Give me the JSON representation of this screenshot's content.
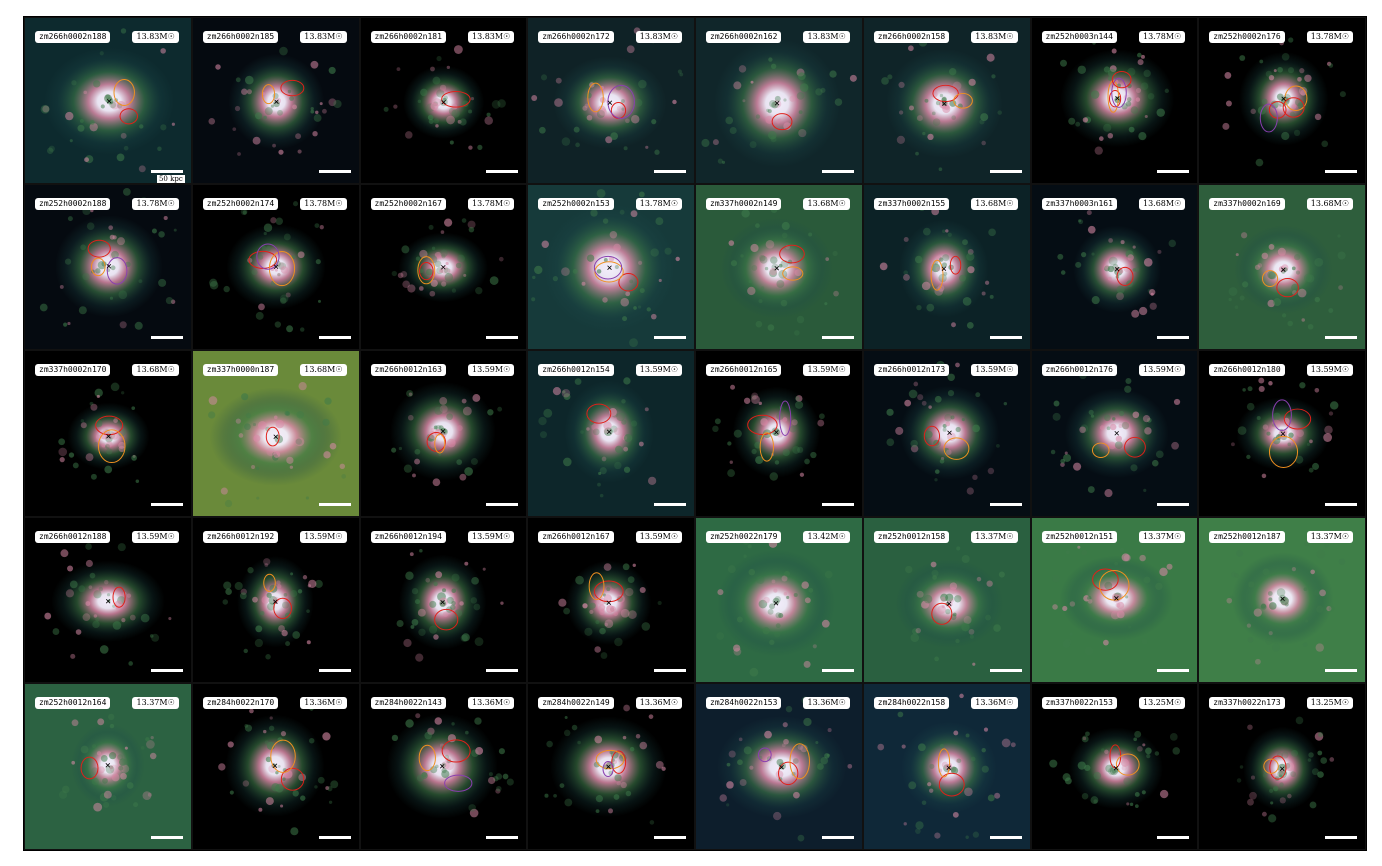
{
  "scale_label": "50 kpc",
  "colors": {
    "core": "#f4eefc",
    "pink": "#d98aa7",
    "green": "#3e7a4a",
    "teal": "#1d4a4a",
    "contour_red": "#e0201a",
    "contour_orange": "#f09020",
    "contour_purple": "#8a3fb0"
  },
  "panels": [
    {
      "name": "zm266h0002n188",
      "mass": "13.83M☉",
      "bg": "#0d2a2e",
      "glow": 0.55,
      "contours": 2
    },
    {
      "name": "zm266h0002n185",
      "mass": "13.83M☉",
      "bg": "#050a10",
      "glow": 0.5,
      "contours": 2
    },
    {
      "name": "zm266h0002n181",
      "mass": "13.83M☉",
      "bg": "#000000",
      "glow": 0.35,
      "contours": 1
    },
    {
      "name": "zm266h0002n172",
      "mass": "13.83M☉",
      "bg": "#0f2226",
      "glow": 0.55,
      "contours": 3
    },
    {
      "name": "zm266h0002n162",
      "mass": "13.83M☉",
      "bg": "#10262a",
      "glow": 0.6,
      "contours": 1
    },
    {
      "name": "zm266h0002n158",
      "mass": "13.83M☉",
      "bg": "#0f2428",
      "glow": 0.5,
      "contours": 2
    },
    {
      "name": "zm252h0003n144",
      "mass": "13.78M☉",
      "bg": "#000000",
      "glow": 0.45,
      "contours": 4
    },
    {
      "name": "zm252h0002n176",
      "mass": "13.78M☉",
      "bg": "#000000",
      "glow": 0.45,
      "contours": 4
    },
    {
      "name": "zm252h0002n188",
      "mass": "13.78M☉",
      "bg": "#050a10",
      "glow": 0.55,
      "contours": 3
    },
    {
      "name": "zm252h0002n174",
      "mass": "13.78M☉",
      "bg": "#000000",
      "glow": 0.45,
      "contours": 3
    },
    {
      "name": "zm252h0002n167",
      "mass": "13.78M☉",
      "bg": "#000000",
      "glow": 0.35,
      "contours": 2
    },
    {
      "name": "zm252h0002n153",
      "mass": "13.78M☉",
      "bg": "#163a3a",
      "glow": 0.6,
      "contours": 3
    },
    {
      "name": "zm337h0002n149",
      "mass": "13.68M☉",
      "bg": "#2a5a3a",
      "glow": 0.45,
      "contours": 2
    },
    {
      "name": "zm337h0002n155",
      "mass": "13.68M☉",
      "bg": "#0c2226",
      "glow": 0.45,
      "contours": 2
    },
    {
      "name": "zm337h0003n161",
      "mass": "13.68M☉",
      "bg": "#050d14",
      "glow": 0.4,
      "contours": 1
    },
    {
      "name": "zm337h0002n169",
      "mass": "13.68M☉",
      "bg": "#2e5e3c",
      "glow": 0.45,
      "contours": 2
    },
    {
      "name": "zm337h0002n170",
      "mass": "13.68M☉",
      "bg": "#000000",
      "glow": 0.3,
      "contours": 2
    },
    {
      "name": "zm337h0000n187",
      "mass": "13.68M☉",
      "bg": "#6a8a3a",
      "glow": 0.6,
      "contours": 1
    },
    {
      "name": "zm266h0012n163",
      "mass": "13.59M☉",
      "bg": "#000000",
      "glow": 0.4,
      "contours": 2
    },
    {
      "name": "zm266h0012n154",
      "mass": "13.59M☉",
      "bg": "#0d262a",
      "glow": 0.45,
      "contours": 1
    },
    {
      "name": "zm266h0012n165",
      "mass": "13.59M☉",
      "bg": "#000000",
      "glow": 0.4,
      "contours": 3
    },
    {
      "name": "zm266h0012n173",
      "mass": "13.59M☉",
      "bg": "#050d14",
      "glow": 0.45,
      "contours": 2
    },
    {
      "name": "zm266h0012n176",
      "mass": "13.59M☉",
      "bg": "#050d14",
      "glow": 0.45,
      "contours": 2
    },
    {
      "name": "zm266h0012n180",
      "mass": "13.59M☉",
      "bg": "#000000",
      "glow": 0.35,
      "contours": 3
    },
    {
      "name": "zm266h0012n188",
      "mass": "13.59M☉",
      "bg": "#000000",
      "glow": 0.45,
      "contours": 1
    },
    {
      "name": "zm266h0012n192",
      "mass": "13.59M☉",
      "bg": "#000000",
      "glow": 0.35,
      "contours": 2
    },
    {
      "name": "zm266h0012n194",
      "mass": "13.59M☉",
      "bg": "#000000",
      "glow": 0.4,
      "contours": 1
    },
    {
      "name": "zm266h0012n167",
      "mass": "13.59M☉",
      "bg": "#000000",
      "glow": 0.35,
      "contours": 2
    },
    {
      "name": "zm252h0022n179",
      "mass": "13.42M☉",
      "bg": "#2e6a44",
      "glow": 0.55,
      "contours": 0
    },
    {
      "name": "zm252h0012n158",
      "mass": "13.37M☉",
      "bg": "#2a6040",
      "glow": 0.45,
      "contours": 1
    },
    {
      "name": "zm252h0012n151",
      "mass": "13.37M☉",
      "bg": "#3a7a46",
      "glow": 0.45,
      "contours": 2
    },
    {
      "name": "zm252h0012n187",
      "mass": "13.37M☉",
      "bg": "#3f7f48",
      "glow": 0.55,
      "contours": 0
    },
    {
      "name": "zm252h0012n164",
      "mass": "13.37M☉",
      "bg": "#2c6242",
      "glow": 0.3,
      "contours": 1
    },
    {
      "name": "zm284h0022n170",
      "mass": "13.36M☉",
      "bg": "#000000",
      "glow": 0.45,
      "contours": 2
    },
    {
      "name": "zm284h0022n143",
      "mass": "13.36M☉",
      "bg": "#000000",
      "glow": 0.5,
      "contours": 3
    },
    {
      "name": "zm284h0022n149",
      "mass": "13.36M☉",
      "bg": "#000000",
      "glow": 0.5,
      "contours": 3
    },
    {
      "name": "zm284h0022n153",
      "mass": "13.36M☉",
      "bg": "#0d1e2c",
      "glow": 0.55,
      "contours": 3
    },
    {
      "name": "zm284h0022n158",
      "mass": "13.36M☉",
      "bg": "#0f2838",
      "glow": 0.5,
      "contours": 2
    },
    {
      "name": "zm337h0022n153",
      "mass": "13.25M☉",
      "bg": "#000000",
      "glow": 0.45,
      "contours": 2
    },
    {
      "name": "zm337h0022n173",
      "mass": "13.25M☉",
      "bg": "#000000",
      "glow": 0.3,
      "contours": 2
    }
  ]
}
